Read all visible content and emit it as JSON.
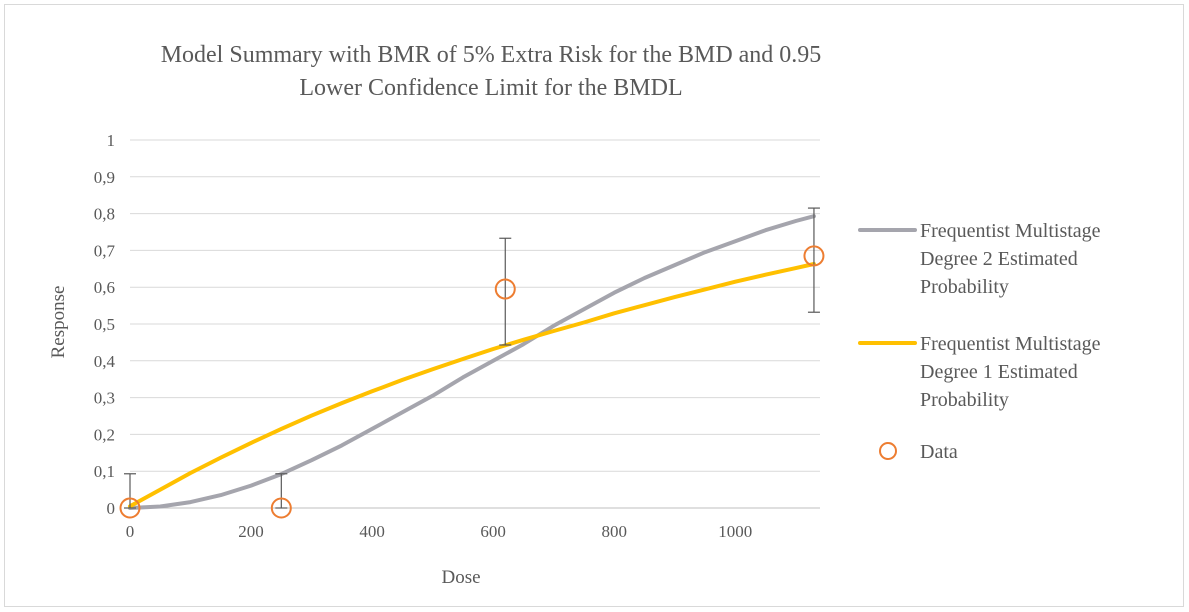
{
  "chart_data": {
    "type": "line",
    "title_lines": [
      "Model Summary with BMR of 5% Extra Risk for the BMD and 0.95",
      "Lower Confidence Limit for the BMDL"
    ],
    "xlabel": "Dose",
    "ylabel": "Response",
    "xlim": [
      0,
      1140
    ],
    "ylim": [
      0,
      1
    ],
    "x_ticks": [
      "0",
      "200",
      "400",
      "600",
      "800",
      "1000"
    ],
    "y_ticks": [
      "0",
      "0,1",
      "0,2",
      "0,3",
      "0,4",
      "0,5",
      "0,6",
      "0,7",
      "0,8",
      "0,9",
      "1"
    ],
    "grid": "horizontal",
    "legend_position": "right",
    "series": [
      {
        "name_lines": [
          "Frequentist Multistage",
          "Degree 2 Estimated",
          "Probability"
        ],
        "kind": "line",
        "color": "#a5a5ad",
        "x": [
          0,
          50,
          100,
          150,
          200,
          250,
          300,
          350,
          400,
          450,
          500,
          550,
          600,
          650,
          700,
          750,
          800,
          850,
          900,
          950,
          1000,
          1050,
          1100,
          1130
        ],
        "y": [
          0,
          0.004,
          0.016,
          0.035,
          0.061,
          0.092,
          0.13,
          0.17,
          0.215,
          0.26,
          0.305,
          0.355,
          0.4,
          0.445,
          0.495,
          0.54,
          0.585,
          0.625,
          0.66,
          0.695,
          0.725,
          0.755,
          0.78,
          0.793
        ]
      },
      {
        "name_lines": [
          "Frequentist Multistage",
          "Degree 1 Estimated",
          "Probability"
        ],
        "kind": "line",
        "color": "#ffc000",
        "x": [
          0,
          50,
          100,
          150,
          200,
          250,
          300,
          350,
          400,
          450,
          500,
          550,
          600,
          650,
          700,
          750,
          800,
          850,
          900,
          950,
          1000,
          1050,
          1100,
          1130
        ],
        "y": [
          0.005,
          0.05,
          0.095,
          0.137,
          0.177,
          0.215,
          0.251,
          0.285,
          0.317,
          0.348,
          0.377,
          0.405,
          0.432,
          0.457,
          0.481,
          0.504,
          0.529,
          0.551,
          0.573,
          0.594,
          0.615,
          0.634,
          0.652,
          0.663
        ]
      },
      {
        "name_lines": [
          "Data"
        ],
        "kind": "points",
        "color": "#ed7d31",
        "errorbar_color": "#595959",
        "x": [
          0,
          250,
          620,
          1130
        ],
        "y": [
          0,
          0,
          0.595,
          0.685
        ],
        "lower": [
          0,
          0,
          0.443,
          0.532
        ],
        "upper": [
          0.093,
          0.093,
          0.733,
          0.815
        ]
      }
    ]
  }
}
